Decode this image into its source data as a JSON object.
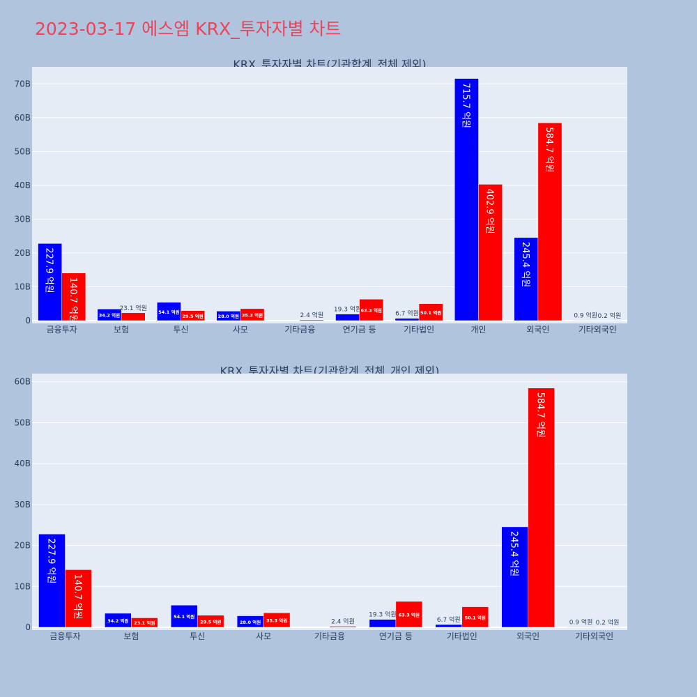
{
  "page_title": "2023-03-17 에스엠 KRX_투자자별 차트",
  "colors": {
    "buy": "#0000ff",
    "sell": "#ff0000",
    "plot_bg": "#e5ecf6",
    "page_bg": "#b0c4de"
  },
  "chart_data": [
    {
      "type": "bar",
      "title": "KRX_투자자별 차트(기관합계_전체 제외)",
      "categories": [
        "금융투자",
        "보험",
        "투신",
        "사모",
        "기타금융",
        "연기금 등",
        "기타법인",
        "개인",
        "외국인",
        "기타외국인"
      ],
      "series": [
        {
          "color": "#0000ff",
          "values": [
            22.79,
            3.42,
            5.41,
            2.8,
            0.0,
            1.93,
            0.67,
            71.57,
            24.54,
            0.09
          ],
          "labels": [
            "227.9 억원",
            "34.2 억원",
            "54.1 억원",
            "28.0 억원",
            "",
            "19.3 억원",
            "6.7 억원",
            "715.7 억원",
            "245.4 억원",
            "0.9 억원"
          ]
        },
        {
          "color": "#ff0000",
          "values": [
            14.07,
            2.31,
            2.95,
            3.53,
            0.24,
            6.33,
            5.01,
            40.29,
            58.47,
            0.02
          ],
          "labels": [
            "140.7 억원",
            "23.1 억원",
            "29.5 억원",
            "35.3 억원",
            "2.4 억원",
            "63.3 억원",
            "50.1 억원",
            "402.9 억원",
            "584.7 억원",
            "0.2 억원"
          ]
        }
      ],
      "ylim": [
        0,
        75
      ],
      "yticks": [
        "0",
        "10B",
        "20B",
        "30B",
        "40B",
        "50B",
        "60B",
        "70B"
      ],
      "ytick_values": [
        0,
        10,
        20,
        30,
        40,
        50,
        60,
        70
      ],
      "grid": true,
      "legend": "none"
    },
    {
      "type": "bar",
      "title": "KRX_투자자별 차트(기관합계_전체_개인 제외)",
      "categories": [
        "금융투자",
        "보험",
        "투신",
        "사모",
        "기타금융",
        "연기금 등",
        "기타법인",
        "외국인",
        "기타외국인"
      ],
      "series": [
        {
          "color": "#0000ff",
          "values": [
            22.79,
            3.42,
            5.41,
            2.8,
            0.0,
            1.93,
            0.67,
            24.54,
            0.09
          ],
          "labels": [
            "227.9 억원",
            "34.2 억원",
            "54.1 억원",
            "28.0 억원",
            "",
            "19.3 억원",
            "6.7 억원",
            "245.4 억원",
            "0.9 억원"
          ]
        },
        {
          "color": "#ff0000",
          "values": [
            14.07,
            2.31,
            2.95,
            3.53,
            0.24,
            6.33,
            5.01,
            58.47,
            0.02
          ],
          "labels": [
            "140.7 억원",
            "23.1 억원",
            "29.5 억원",
            "35.3 억원",
            "2.4 억원",
            "63.3 억원",
            "50.1 억원",
            "584.7 억원",
            "0.2 억원"
          ]
        }
      ],
      "ylim": [
        0,
        62
      ],
      "yticks": [
        "0",
        "10B",
        "20B",
        "30B",
        "40B",
        "50B",
        "60B"
      ],
      "ytick_values": [
        0,
        10,
        20,
        30,
        40,
        50,
        60
      ],
      "grid": true,
      "legend": "none"
    }
  ]
}
